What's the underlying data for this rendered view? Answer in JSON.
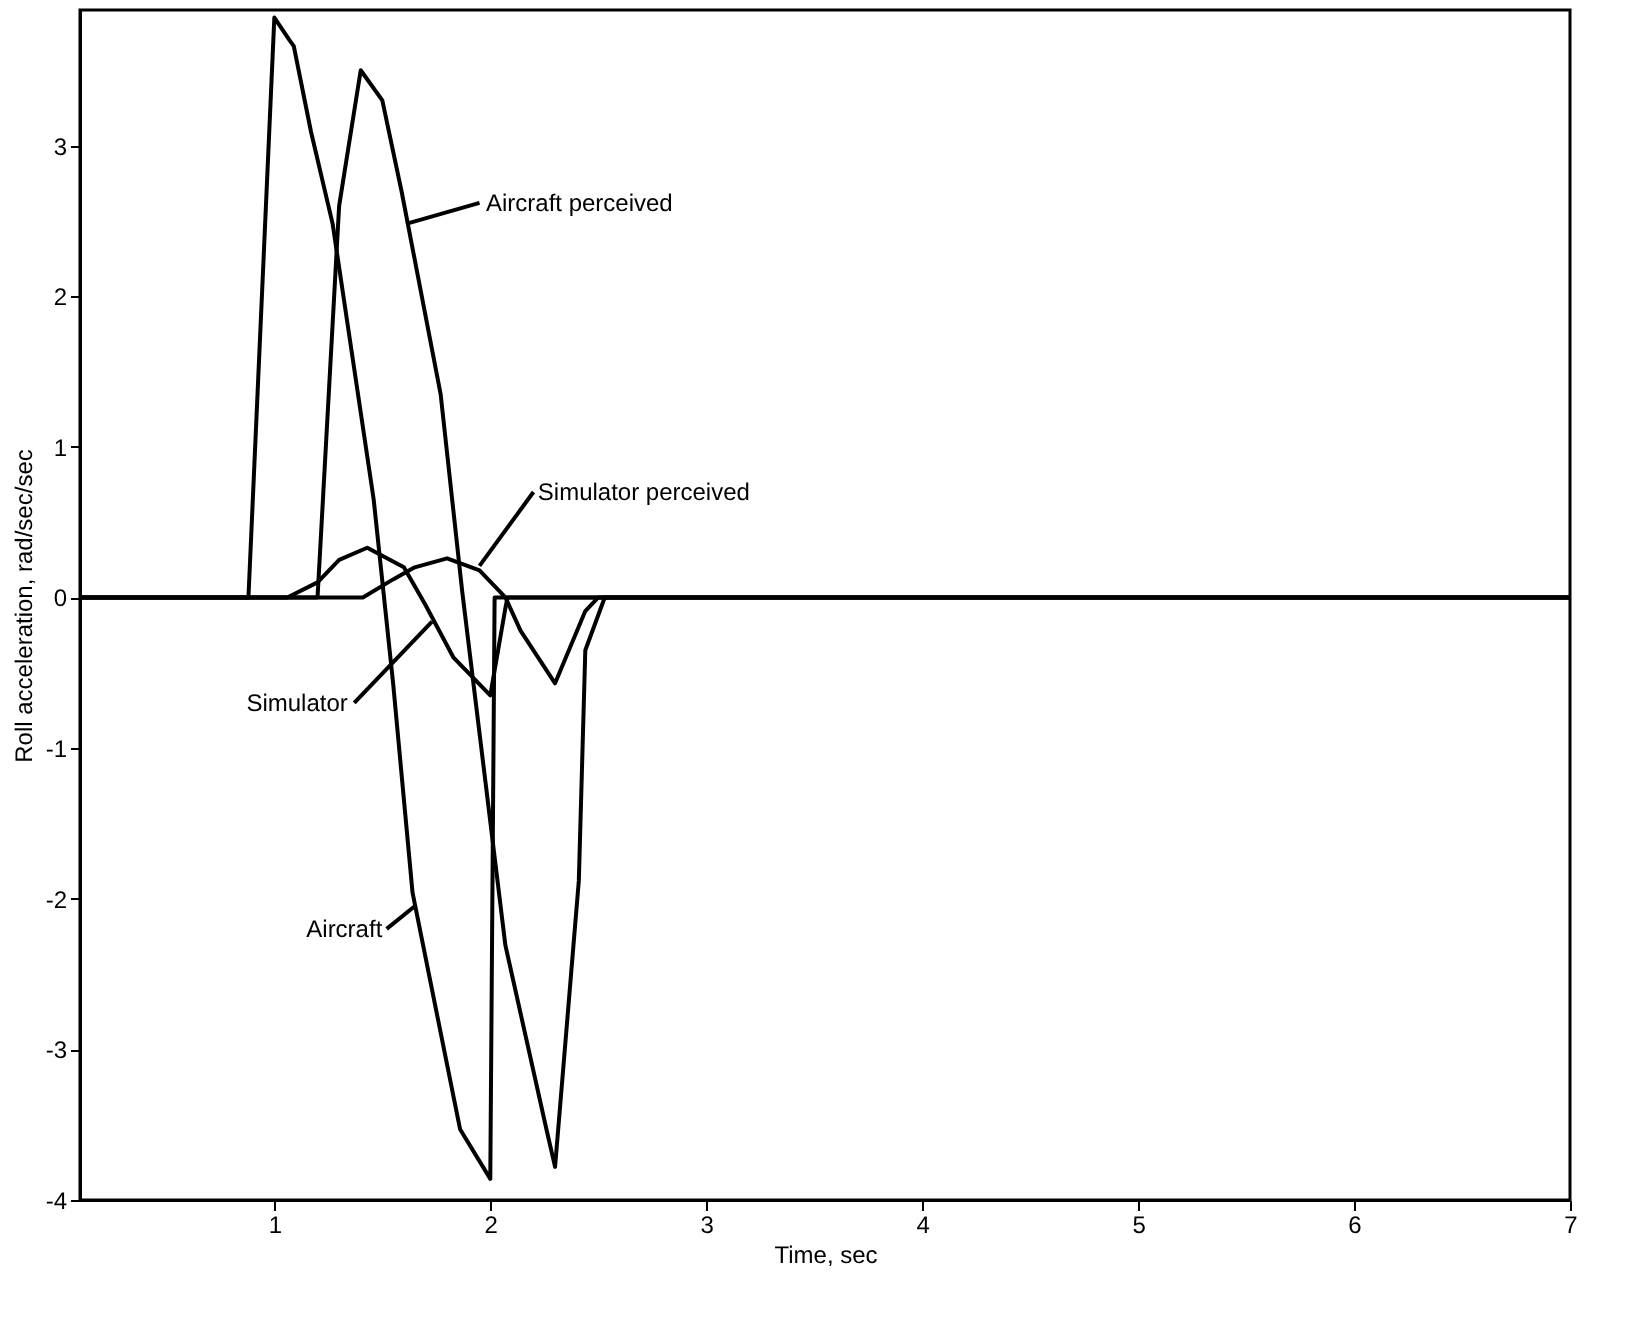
{
  "chart_data": {
    "type": "line",
    "xlabel": "Time, sec",
    "ylabel": "Roll acceleration, rad/sec/sec",
    "xlim": [
      0.1,
      7
    ],
    "ylim": [
      -4,
      3.9
    ],
    "xticks": [
      1,
      2,
      3,
      4,
      5,
      6,
      7
    ],
    "yticks": [
      -4,
      -3,
      -2,
      -1,
      0,
      1,
      2,
      3
    ],
    "grid": false,
    "marker": "none",
    "line_style": "solid",
    "series": [
      {
        "name": "Aircraft",
        "color": "#000000",
        "x": [
          0.1,
          0.88,
          1.0,
          1.07,
          1.09,
          1.17,
          1.27,
          1.46,
          1.55,
          1.64,
          1.86,
          2.0,
          2.02,
          7
        ],
        "values": [
          0,
          0,
          3.85,
          3.7,
          3.66,
          3.09,
          2.48,
          0.65,
          -0.57,
          -1.96,
          -3.53,
          -3.86,
          0,
          0
        ]
      },
      {
        "name": "Aircraft perceived",
        "color": "#000000",
        "x": [
          0.1,
          1.2,
          1.3,
          1.4,
          1.5,
          1.59,
          1.77,
          1.87,
          1.95,
          2.07,
          2.26,
          2.3,
          2.41,
          2.44,
          2.53,
          7
        ],
        "values": [
          0,
          0,
          2.6,
          3.5,
          3.3,
          2.69,
          1.35,
          0.04,
          -0.9,
          -2.31,
          -3.53,
          -3.78,
          -1.88,
          -0.35,
          0,
          0
        ]
      },
      {
        "name": "Simulator",
        "color": "#000000",
        "x": [
          0.1,
          1.06,
          1.2,
          1.3,
          1.43,
          1.6,
          1.7,
          1.83,
          2.0,
          2.07,
          2.08,
          7
        ],
        "values": [
          0,
          0,
          0.1,
          0.25,
          0.33,
          0.2,
          -0.05,
          -0.4,
          -0.65,
          -0.07,
          0,
          0
        ]
      },
      {
        "name": "Simulator perceived",
        "color": "#000000",
        "x": [
          0.1,
          1.41,
          1.55,
          1.65,
          1.8,
          1.95,
          2.07,
          2.14,
          2.3,
          2.44,
          2.5,
          7
        ],
        "values": [
          0,
          0,
          0.12,
          0.2,
          0.26,
          0.18,
          0,
          -0.22,
          -0.57,
          -0.09,
          0,
          0
        ]
      }
    ]
  }
}
